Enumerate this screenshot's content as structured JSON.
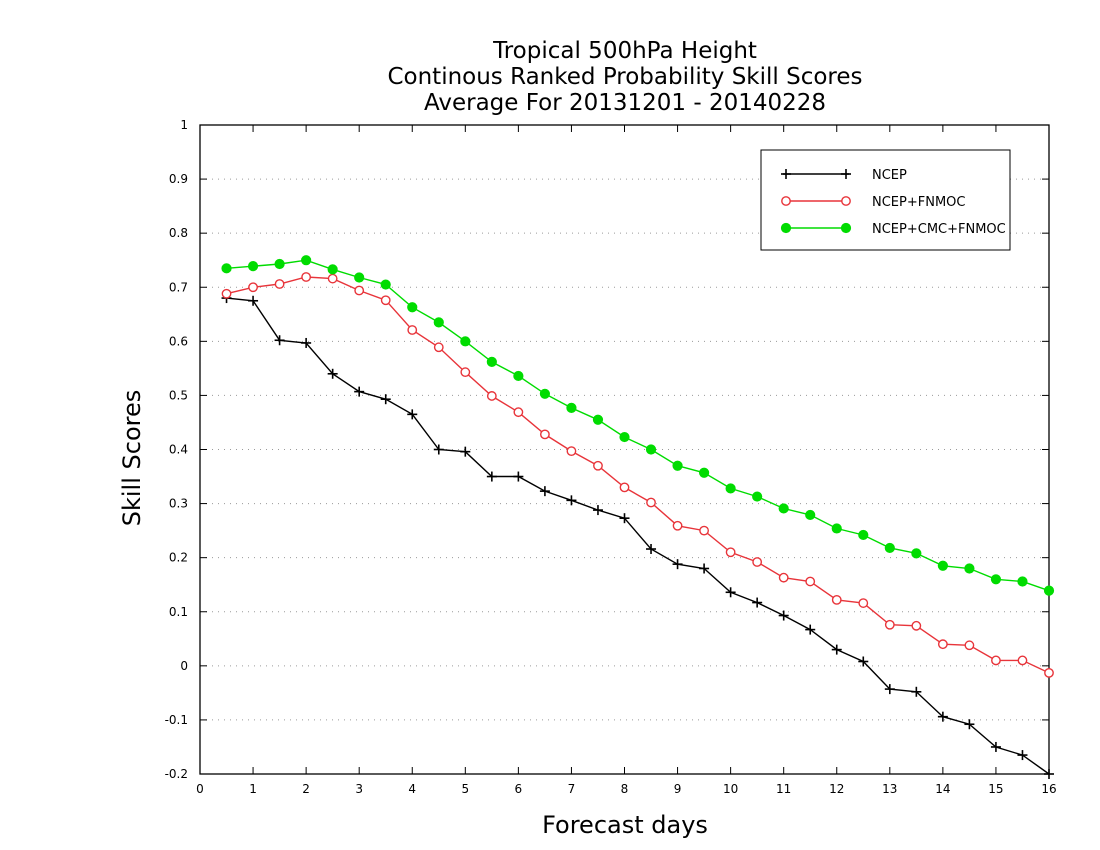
{
  "chart_data": {
    "type": "line",
    "title": [
      "Tropical 500hPa Height",
      "Continous Ranked Probability Skill Scores",
      "Average For 20131201 - 20140228"
    ],
    "xlabel": "Forecast days",
    "ylabel": "Skill Scores",
    "xlim": [
      0,
      16
    ],
    "ylim": [
      -0.2,
      1
    ],
    "xticks": [
      0,
      1,
      2,
      3,
      4,
      5,
      6,
      7,
      8,
      9,
      10,
      11,
      12,
      13,
      14,
      15,
      16
    ],
    "yticks": [
      -0.2,
      -0.1,
      0,
      0.1,
      0.2,
      0.3,
      0.4,
      0.5,
      0.6,
      0.7,
      0.8,
      0.9,
      1
    ],
    "ytick_labels": [
      "-0.2",
      "-0.1",
      "0",
      "0.1",
      "0.2",
      "0.3",
      "0.4",
      "0.5",
      "0.6",
      "0.7",
      "0.8",
      "0.9",
      "1"
    ],
    "grid": "horizontal dotted",
    "legend_position": "top-right",
    "x": [
      0.5,
      1,
      1.5,
      2,
      2.5,
      3,
      3.5,
      4,
      4.5,
      5,
      5.5,
      6,
      6.5,
      7,
      7.5,
      8,
      8.5,
      9,
      9.5,
      10,
      10.5,
      11,
      11.5,
      12,
      12.5,
      13,
      13.5,
      14,
      14.5,
      15,
      15.5,
      16
    ],
    "series": [
      {
        "name": "NCEP",
        "color": "#000000",
        "marker": "plus",
        "values": [
          0.68,
          0.675,
          0.602,
          0.597,
          0.54,
          0.507,
          0.493,
          0.465,
          0.4,
          0.396,
          0.35,
          0.35,
          0.323,
          0.306,
          0.288,
          0.273,
          0.216,
          0.188,
          0.18,
          0.136,
          0.117,
          0.093,
          0.067,
          0.03,
          0.008,
          -0.043,
          -0.048,
          -0.094,
          -0.108,
          -0.15,
          -0.165,
          -0.2
        ]
      },
      {
        "name": "NCEP+FNMOC",
        "color": "#e8343a",
        "marker": "open-circle",
        "values": [
          0.688,
          0.7,
          0.706,
          0.719,
          0.716,
          0.694,
          0.676,
          0.621,
          0.589,
          0.543,
          0.499,
          0.469,
          0.428,
          0.397,
          0.37,
          0.33,
          0.302,
          0.259,
          0.25,
          0.21,
          0.192,
          0.163,
          0.156,
          0.122,
          0.116,
          0.076,
          0.074,
          0.04,
          0.038,
          0.01,
          0.01,
          -0.013
        ]
      },
      {
        "name": "NCEP+CMC+FNMOC",
        "color": "#00dc00",
        "marker": "filled-circle",
        "values": [
          0.735,
          0.739,
          0.743,
          0.75,
          0.733,
          0.718,
          0.705,
          0.663,
          0.635,
          0.6,
          0.562,
          0.536,
          0.503,
          0.477,
          0.455,
          0.423,
          0.4,
          0.37,
          0.357,
          0.328,
          0.313,
          0.291,
          0.279,
          0.254,
          0.242,
          0.218,
          0.208,
          0.185,
          0.18,
          0.16,
          0.156,
          0.139
        ]
      }
    ]
  }
}
